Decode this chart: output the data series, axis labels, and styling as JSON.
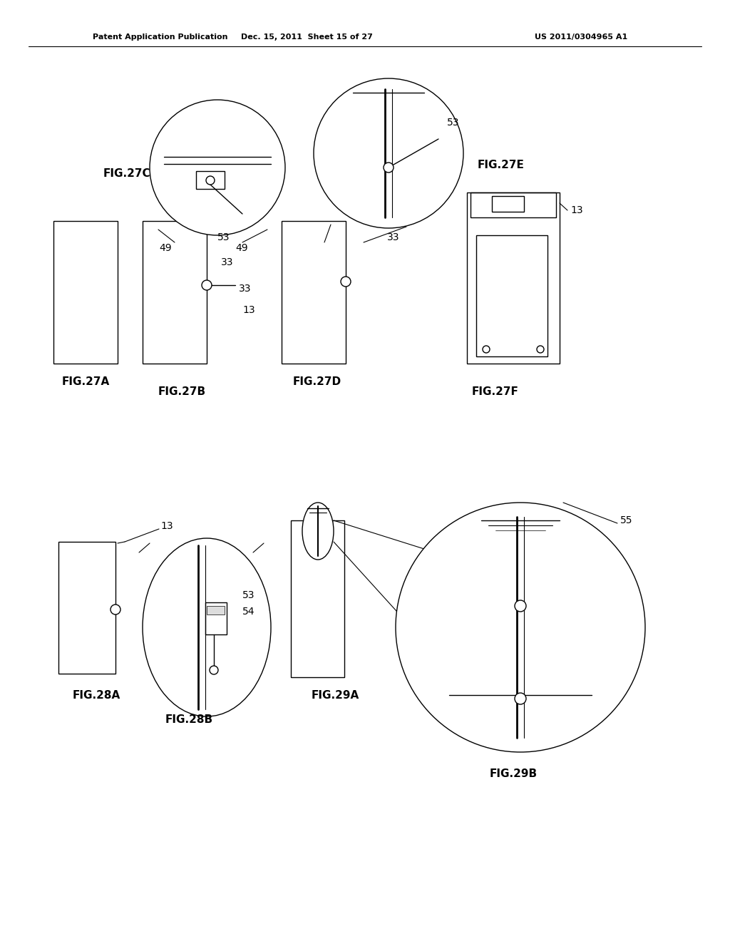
{
  "background_color": "#ffffff",
  "header_text": "Patent Application Publication",
  "header_date": "Dec. 15, 2011  Sheet 15 of 27",
  "header_patent": "US 2011/0304965 A1",
  "font_size_fig": 11,
  "font_size_header": 8,
  "font_size_num": 10
}
